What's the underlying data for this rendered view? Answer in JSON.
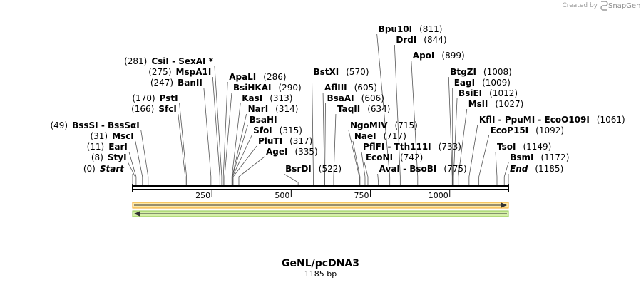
{
  "credit": {
    "prefix": "Created by",
    "brand": "SnapGene"
  },
  "map": {
    "name": "GeNL/pcDNA3",
    "length_label": "1185 bp",
    "length": 1185,
    "ticks": [
      "250",
      "500",
      "750",
      "1000"
    ],
    "tick_values": [
      250,
      500,
      750,
      1000
    ],
    "features": [
      {
        "name": "orange-feature",
        "direction": "forward",
        "color": "#f4a21c",
        "fill": "#fde9a8"
      },
      {
        "name": "green-feature",
        "direction": "reverse",
        "color": "#8cc84b",
        "fill": "#d6f0a8"
      }
    ],
    "sites": [
      {
        "name": "Start",
        "pos": "(0)",
        "italic": true,
        "at": 0
      },
      {
        "name": "StyI",
        "pos": "(8)",
        "at": 8
      },
      {
        "name": "EarI",
        "pos": "(11)",
        "at": 11
      },
      {
        "name": "MscI",
        "pos": "(31)",
        "at": 31
      },
      {
        "name": "BssSI  - BssSαI",
        "pos": "(49)",
        "at": 49
      },
      {
        "name": "SfcI",
        "pos": "(166)",
        "at": 166
      },
      {
        "name": "PstI",
        "pos": "(170)",
        "at": 170
      },
      {
        "name": "BanII",
        "pos": "(247)",
        "at": 247
      },
      {
        "name": "MspA1I",
        "pos": "(275)",
        "at": 275
      },
      {
        "name": "CsiI  - SexAI *",
        "pos": "(281)",
        "at": 281
      },
      {
        "name": "ApaLI",
        "pos": "(286)",
        "at": 286
      },
      {
        "name": "BsiHKAI",
        "pos": "(290)",
        "at": 290
      },
      {
        "name": "KasI",
        "pos": "(313)",
        "at": 313
      },
      {
        "name": "NarI",
        "pos": "(314)",
        "at": 314
      },
      {
        "name": "BsaHI",
        "pos": "",
        "at": 314
      },
      {
        "name": "SfoI",
        "pos": "(315)",
        "at": 315
      },
      {
        "name": "PluTI",
        "pos": "(317)",
        "at": 317
      },
      {
        "name": "AgeI",
        "pos": "(335)",
        "at": 335
      },
      {
        "name": "BsrDI",
        "pos": "(522)",
        "at": 522
      },
      {
        "name": "BstXI",
        "pos": "(570)",
        "at": 570
      },
      {
        "name": "AflIII",
        "pos": "(605)",
        "at": 605
      },
      {
        "name": "BsaAI",
        "pos": "(606)",
        "at": 606
      },
      {
        "name": "TaqII",
        "pos": "(634)",
        "at": 634
      },
      {
        "name": "NgoMIV",
        "pos": "(715)",
        "at": 715
      },
      {
        "name": "NaeI",
        "pos": "(717)",
        "at": 717
      },
      {
        "name": "PflFI  - Tth111I",
        "pos": "(733)",
        "at": 733
      },
      {
        "name": "EcoNI",
        "pos": "(742)",
        "at": 742
      },
      {
        "name": "AvaI  - BsoBI",
        "pos": "(775)",
        "at": 775
      },
      {
        "name": "Bpu10I",
        "pos": "(811)",
        "at": 811
      },
      {
        "name": "DrdI",
        "pos": "(844)",
        "at": 844
      },
      {
        "name": "ApoI",
        "pos": "(899)",
        "at": 899
      },
      {
        "name": "BtgZI",
        "pos": "(1008)",
        "at": 1008
      },
      {
        "name": "EagI",
        "pos": "(1009)",
        "at": 1009
      },
      {
        "name": "BsiEI",
        "pos": "(1012)",
        "at": 1012
      },
      {
        "name": "MslI",
        "pos": "(1027)",
        "at": 1027
      },
      {
        "name": "KflI  - PpuMI  - EcoO109I",
        "pos": "(1061)",
        "at": 1061
      },
      {
        "name": "EcoP15I",
        "pos": "(1092)",
        "at": 1092
      },
      {
        "name": "TsoI",
        "pos": "(1149)",
        "at": 1149
      },
      {
        "name": "BsmI",
        "pos": "(1172)",
        "at": 1172
      },
      {
        "name": "End",
        "pos": "(1185)",
        "italic": true,
        "at": 1185
      }
    ]
  }
}
